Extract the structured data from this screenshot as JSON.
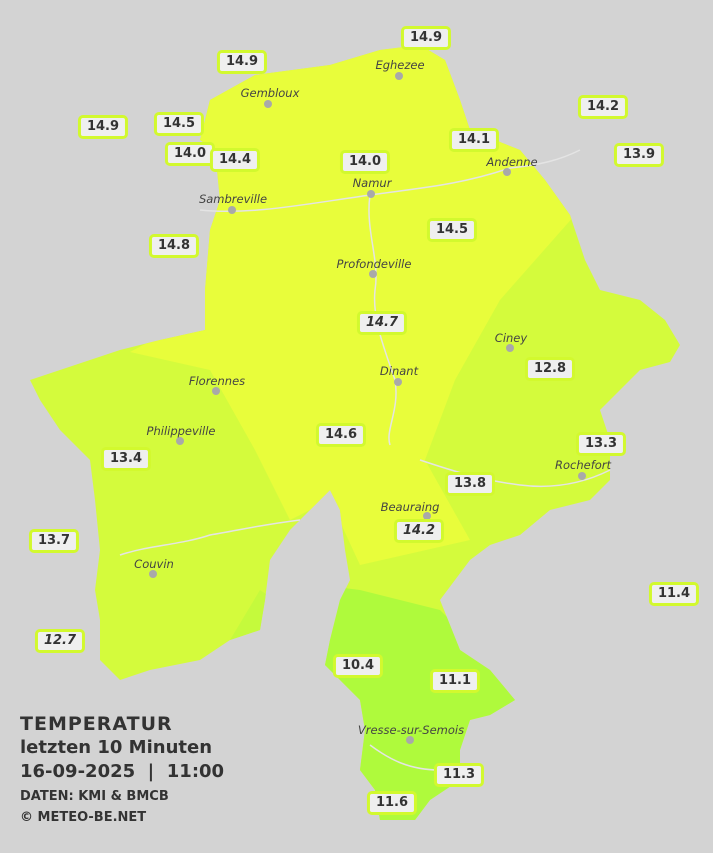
{
  "legend": {
    "title": "TEMPERATUR",
    "subtitle": "letzten 10 Minuten",
    "datetime": "16-09-2025  |  11:00",
    "source": "DATEN: KMI & BMCB",
    "copyright": "© METEO-BE.NET"
  },
  "colors": {
    "background": "#d3d3d3",
    "zone_14_plus": "#e8fd3b",
    "zone_12_14": "#d4fb3c",
    "zone_10_12": "#affa3c",
    "label_border": "#d2f92e"
  },
  "cities": [
    "Eghezee",
    "Gembloux",
    "Andenne",
    "Namur",
    "Sambreville",
    "Profondeville",
    "Ciney",
    "Dinant",
    "Florennes",
    "Philippeville",
    "Rochefort",
    "Beauraing",
    "Couvin",
    "Vresse-sur-Semois"
  ],
  "stations": [
    "14.9",
    "14.9",
    "14.2",
    "14.9",
    "14.5",
    "14.1",
    "13.9",
    "14.0",
    "14.4",
    "14.0",
    "14.5",
    "14.8",
    "14.7",
    "12.8",
    "13.4",
    "14.6",
    "13.3",
    "13.8",
    "14.2",
    "13.7",
    "11.4",
    "12.7",
    "10.4",
    "11.1",
    "11.3",
    "11.6"
  ]
}
